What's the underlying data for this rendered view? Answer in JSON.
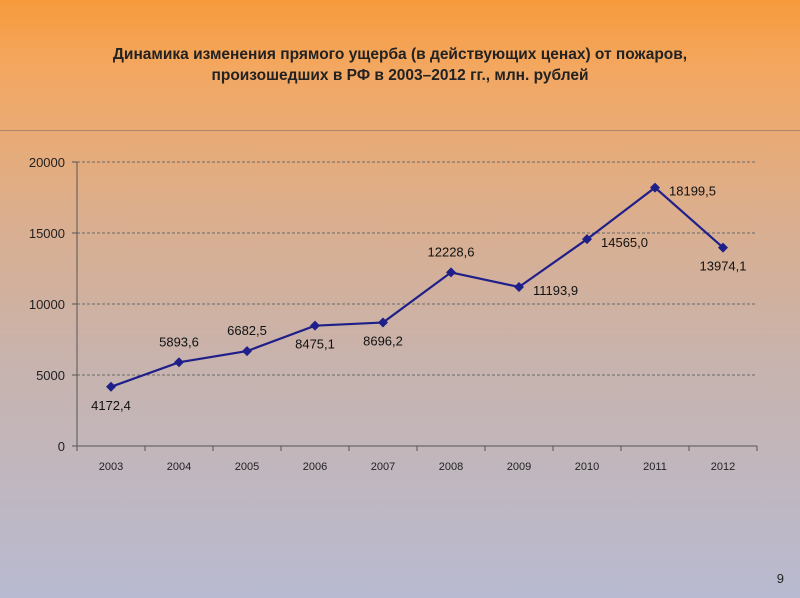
{
  "slide": {
    "title_line1": "Динамика изменения прямого ущерба (в действующих ценах) от пожаров,",
    "title_line2": "произошедших в РФ в 2003–2012 гг., млн. рублей",
    "page_number": "9"
  },
  "chart_data": {
    "type": "line",
    "title": "",
    "xlabel": "",
    "ylabel": "",
    "categories": [
      "2003",
      "2004",
      "2005",
      "2006",
      "2007",
      "2008",
      "2009",
      "2010",
      "2011",
      "2012"
    ],
    "values": [
      4172.4,
      5893.6,
      6682.5,
      8475.1,
      8696.2,
      12228.6,
      11193.9,
      14565.0,
      18199.5,
      13974.1
    ],
    "data_labels": [
      "4172,4",
      "5893,6",
      "6682,5",
      "8475,1",
      "8696,2",
      "12228,6",
      "11193,9",
      "14565,0",
      "18199,5",
      "13974,1"
    ],
    "label_position": [
      "below",
      "above",
      "above",
      "below",
      "below",
      "above",
      "right",
      "right",
      "right",
      "below"
    ],
    "ylim": [
      0,
      20000
    ],
    "yticks": [
      "0",
      "5000",
      "10000",
      "15000",
      "20000"
    ],
    "gridlines": "horizontal dashed",
    "legend": "none",
    "line_color": "#1f1f8a",
    "marker": "diamond"
  }
}
